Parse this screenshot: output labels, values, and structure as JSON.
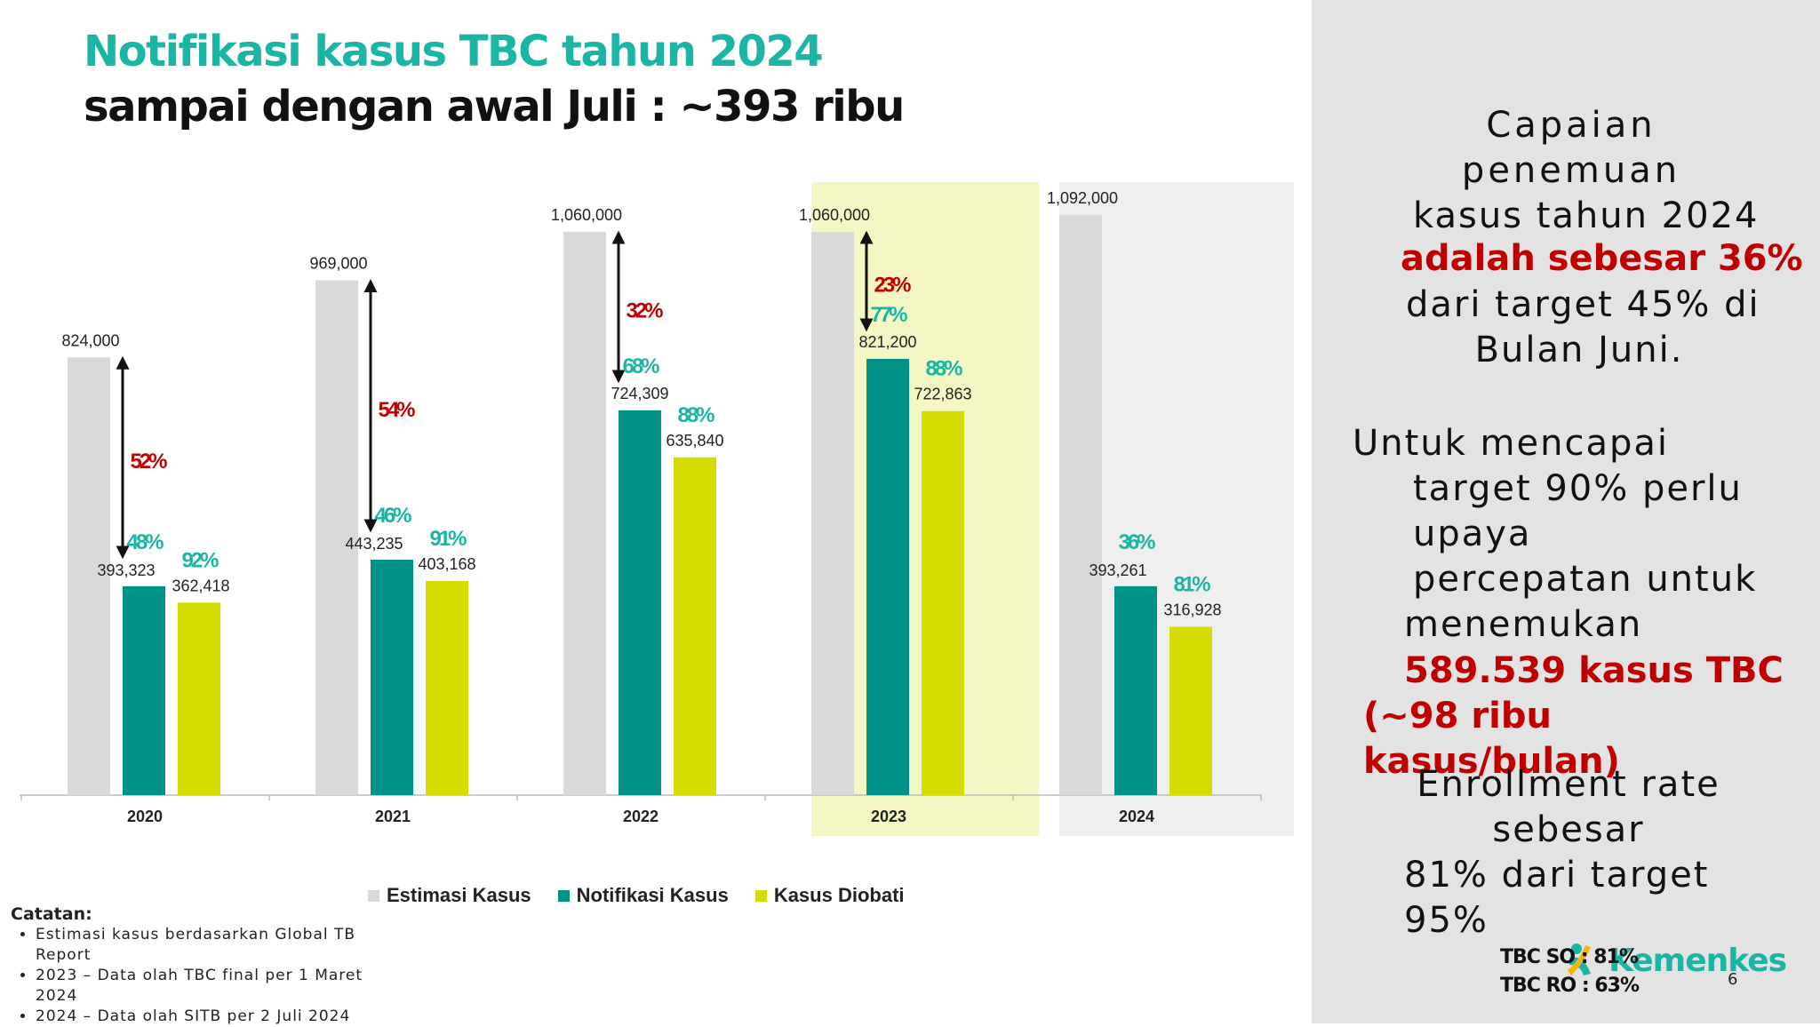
{
  "title_line1": "Notifikasi kasus TBC tahun 2024",
  "title_line2": "sampai dengan awal Juli : ~393 ribu",
  "chart_data": {
    "type": "bar",
    "categories": [
      "2020",
      "2021",
      "2022",
      "2023",
      "2024"
    ],
    "series": [
      {
        "name": "Estimasi Kasus",
        "color": "#d9d9d9",
        "values": [
          824000,
          969000,
          1060000,
          1060000,
          1092000
        ],
        "labels": [
          "824,000",
          "969,000",
          "1,060,000",
          "1,060,000",
          "1,092,000"
        ]
      },
      {
        "name": "Notifikasi Kasus",
        "color": "#009286",
        "values": [
          393323,
          443235,
          724309,
          821200,
          393261
        ],
        "labels": [
          "393,323",
          "443,235",
          "724,309",
          "821,200",
          "393,261"
        ]
      },
      {
        "name": "Kasus Diobati",
        "color": "#d4dc00",
        "values": [
          362418,
          403168,
          635840,
          722863,
          316928
        ],
        "labels": [
          "362,418",
          "403,168",
          "635,840",
          "722,863",
          "316,928"
        ]
      }
    ],
    "gap_percent": [
      "52%",
      "54%",
      "32%",
      "23%",
      null
    ],
    "notification_percent": [
      "48%",
      "46%",
      "68%",
      "77%",
      "36%"
    ],
    "treated_percent": [
      "92%",
      "91%",
      "88%",
      "88%",
      "81%"
    ],
    "highlight": {
      "2023": "#f2f7c4",
      "2024": "#efefef"
    },
    "ylim": [
      0,
      1092000
    ],
    "grid": false,
    "legend": "bottom"
  },
  "notes": {
    "title": "Catatan:",
    "items": [
      "Estimasi kasus berdasarkan Global TB Report",
      "2023 – Data olah TBC final per 1 Maret 2024",
      "2024 – Data olah SITB per 2 Juli 2024"
    ]
  },
  "side": {
    "p1_lines": [
      "Capaian",
      "penemuan",
      "kasus tahun 2024"
    ],
    "p1_red": "adalah sebesar 36%",
    "p1_tail": [
      "dari target 45% di",
      "Bulan Juni."
    ],
    "p2_lines": [
      "Untuk mencapai",
      "target  90% perlu",
      "upaya",
      "percepatan untuk",
      "menemukan"
    ],
    "p2_red": [
      "589.539 kasus TBC",
      "(~98 ribu",
      "kasus/bulan)"
    ],
    "p3_lines": [
      "Enrollment rate",
      "sebesar",
      "81% dari target",
      "95%"
    ]
  },
  "tbc_so": "TBC SO : 81%",
  "tbc_ro": "TBC RO : 63%",
  "logo_text": "Kemenkes",
  "page_number": "6"
}
